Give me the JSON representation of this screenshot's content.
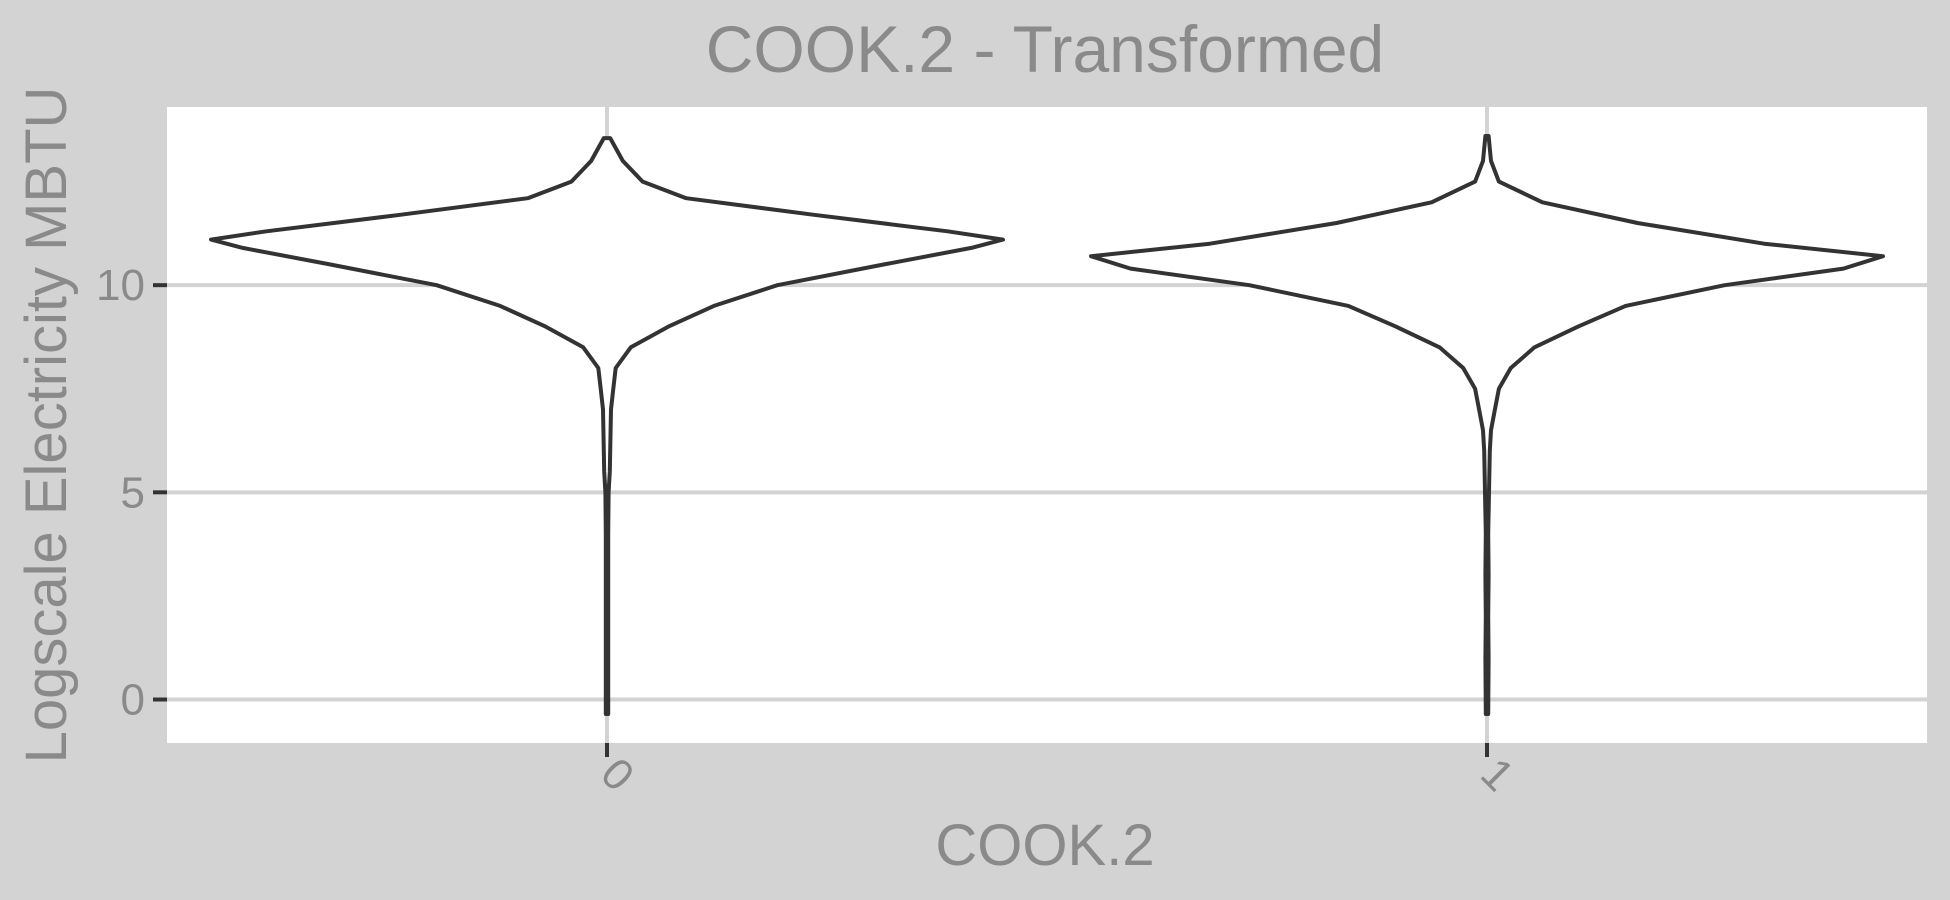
{
  "chart_data": {
    "type": "violin",
    "title": "COOK.2 - Transformed",
    "xlabel": "COOK.2",
    "ylabel": "Logscale Electricity MBTU",
    "categories": [
      "0",
      "1"
    ],
    "yticks": [
      0,
      5,
      10
    ],
    "ylim": [
      -1.05,
      14.3
    ],
    "grid": true,
    "legend": "none",
    "violins": [
      {
        "category": "0",
        "min": -0.35,
        "max": 13.55,
        "density": [
          [
            -0.35,
            0.003
          ],
          [
            0,
            0.003
          ],
          [
            2,
            0.003
          ],
          [
            4,
            0.003
          ],
          [
            5,
            0.004
          ],
          [
            5.5,
            0.007
          ],
          [
            6,
            0.008
          ],
          [
            6.5,
            0.009
          ],
          [
            7,
            0.01
          ],
          [
            7.5,
            0.016
          ],
          [
            8,
            0.022
          ],
          [
            8.5,
            0.06
          ],
          [
            9,
            0.155
          ],
          [
            9.5,
            0.27
          ],
          [
            10,
            0.43
          ],
          [
            10.5,
            0.7
          ],
          [
            10.9,
            0.92
          ],
          [
            11.1,
            1.0
          ],
          [
            11.3,
            0.86
          ],
          [
            11.7,
            0.52
          ],
          [
            12.1,
            0.2
          ],
          [
            12.5,
            0.09
          ],
          [
            13,
            0.04
          ],
          [
            13.55,
            0.008
          ]
        ]
      },
      {
        "category": "1",
        "min": -0.35,
        "max": 13.6,
        "density": [
          [
            -0.35,
            0.003
          ],
          [
            1,
            0.004
          ],
          [
            2,
            0.003
          ],
          [
            3,
            0.004
          ],
          [
            4,
            0.003
          ],
          [
            5,
            0.005
          ],
          [
            6,
            0.007
          ],
          [
            6.5,
            0.01
          ],
          [
            7,
            0.02
          ],
          [
            7.5,
            0.03
          ],
          [
            8,
            0.06
          ],
          [
            8.5,
            0.12
          ],
          [
            9,
            0.23
          ],
          [
            9.5,
            0.35
          ],
          [
            10,
            0.6
          ],
          [
            10.4,
            0.9
          ],
          [
            10.7,
            1.0
          ],
          [
            11,
            0.7
          ],
          [
            11.5,
            0.38
          ],
          [
            12,
            0.14
          ],
          [
            12.5,
            0.03
          ],
          [
            13,
            0.01
          ],
          [
            13.6,
            0.004
          ]
        ]
      }
    ]
  }
}
